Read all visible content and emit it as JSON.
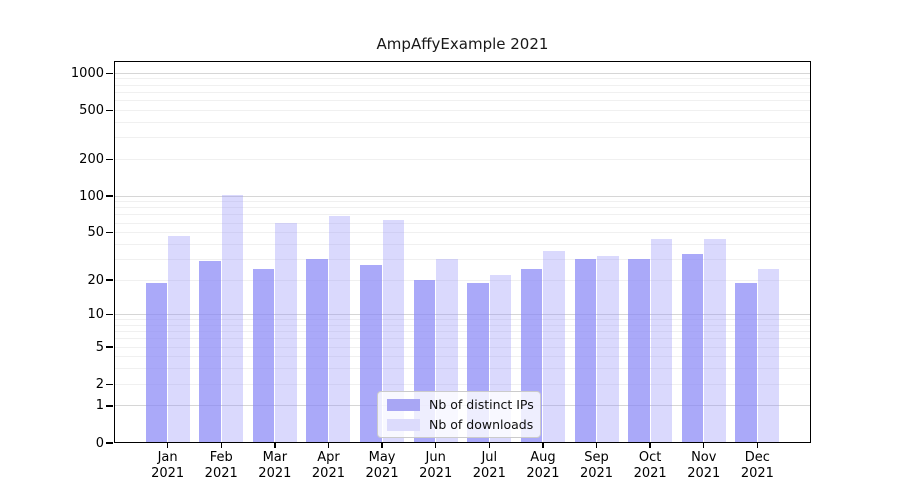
{
  "chart_data": {
    "type": "bar",
    "title": "AmpAffyExample 2021",
    "categories": [
      "Jan 2021",
      "Feb 2021",
      "Mar 2021",
      "Apr 2021",
      "May 2021",
      "Jun 2021",
      "Jul 2021",
      "Aug 2021",
      "Sep 2021",
      "Oct 2021",
      "Nov 2021",
      "Dec 2021"
    ],
    "series": [
      {
        "key": "distinct-ips",
        "name": "Nb of distinct IPs",
        "swatch_color": "#a8a6f4",
        "fill_color": "rgba(134,132,246,0.70)",
        "values": [
          19,
          29,
          25,
          30,
          27,
          20,
          19,
          25,
          30,
          30,
          33,
          19
        ]
      },
      {
        "key": "downloads",
        "name": "Nb of downloads",
        "swatch_color": "#dcdbfc",
        "fill_color": "rgba(149,146,250,0.35)",
        "values": [
          47,
          103,
          60,
          68,
          63,
          30,
          22,
          35,
          32,
          44,
          44,
          25
        ]
      }
    ],
    "xlabel": "",
    "ylabel": "",
    "yscale": "log1p",
    "ylim": [
      0,
      1260
    ],
    "yticks": [
      0,
      1,
      2,
      5,
      10,
      20,
      50,
      100,
      200,
      500,
      1000
    ],
    "y_major_gridlines": [
      1,
      10,
      100,
      1000
    ],
    "y_minor_gridlines": [
      2,
      3,
      4,
      5,
      6,
      7,
      8,
      9,
      20,
      30,
      40,
      50,
      60,
      70,
      80,
      90,
      200,
      300,
      400,
      500,
      600,
      700,
      800,
      900
    ],
    "grid": true,
    "legend_position": "lower center"
  }
}
